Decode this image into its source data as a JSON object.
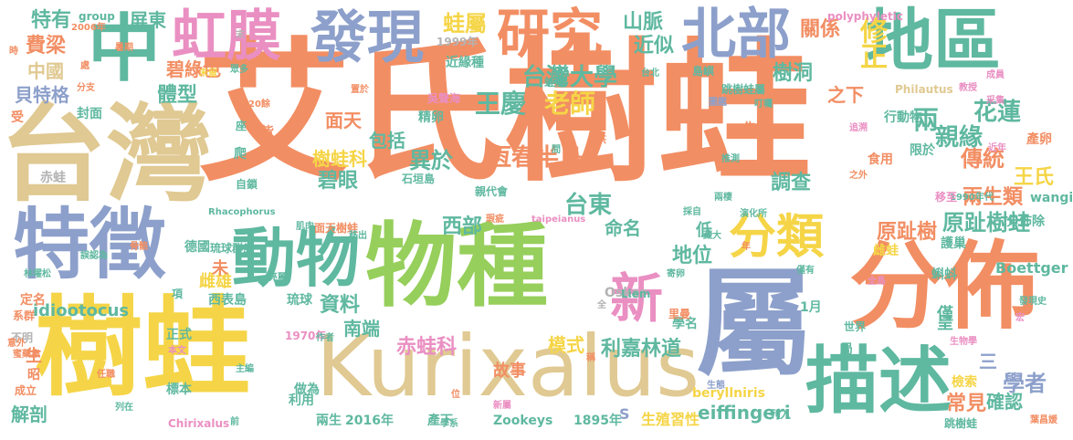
{
  "palette": {
    "orange": "#f28e63",
    "yellow": "#f5d547",
    "green": "#96cf5b",
    "blue": "#8da0cb",
    "beige": "#e0c992",
    "teal": "#5fb8a0",
    "pink": "#ea8fc2",
    "grey": "#b3b3b3"
  },
  "words": [
    {
      "text": "艾氏樹蛙",
      "color": "orange"
    },
    {
      "text": "台灣",
      "color": "beige"
    },
    {
      "text": "樹蛙",
      "color": "yellow"
    },
    {
      "text": "物種",
      "color": "green"
    },
    {
      "text": "屬",
      "color": "blue"
    },
    {
      "text": "分佈",
      "color": "orange"
    },
    {
      "text": "Kurixalus",
      "color": "beige"
    },
    {
      "text": "特徵",
      "color": "blue"
    },
    {
      "text": "動物",
      "color": "teal"
    },
    {
      "text": "描述",
      "color": "teal"
    },
    {
      "text": "地區",
      "color": "teal"
    },
    {
      "text": "中",
      "color": "teal"
    },
    {
      "text": "虹膜",
      "color": "pink"
    },
    {
      "text": "發現",
      "color": "blue"
    },
    {
      "text": "研究",
      "color": "orange"
    },
    {
      "text": "北部",
      "color": "blue"
    },
    {
      "text": "分類",
      "color": "yellow"
    },
    {
      "text": "新",
      "color": "pink"
    },
    {
      "text": "修正",
      "color": "yellow"
    },
    {
      "text": "蛙屬",
      "color": "yellow"
    },
    {
      "text": "特有",
      "color": "teal"
    },
    {
      "text": "費梁",
      "color": "orange"
    },
    {
      "text": "中國",
      "color": "beige"
    },
    {
      "text": "貝特格",
      "color": "blue"
    },
    {
      "text": "體型",
      "color": "teal"
    },
    {
      "text": "碧綠色",
      "color": "orange"
    },
    {
      "text": "屏東",
      "color": "teal"
    },
    {
      "text": "台灣大學",
      "color": "teal"
    },
    {
      "text": "王慶",
      "color": "teal"
    },
    {
      "text": "老師",
      "color": "yellow"
    },
    {
      "text": "山脈",
      "color": "teal"
    },
    {
      "text": "近似",
      "color": "teal"
    },
    {
      "text": "關係",
      "color": "orange"
    },
    {
      "text": "樹洞",
      "color": "teal"
    },
    {
      "text": "之下",
      "color": "orange"
    },
    {
      "text": "兩",
      "color": "teal"
    },
    {
      "text": "花蓮",
      "color": "teal"
    },
    {
      "text": "親緣",
      "color": "teal"
    },
    {
      "text": "傳統",
      "color": "orange"
    },
    {
      "text": "王氏",
      "color": "yellow"
    },
    {
      "text": "兩生類",
      "color": "orange"
    },
    {
      "text": "原趾樹蛙",
      "color": "teal"
    },
    {
      "text": "恆春半島",
      "color": "orange"
    },
    {
      "text": "異於",
      "color": "teal"
    },
    {
      "text": "包括",
      "color": "teal"
    },
    {
      "text": "面天",
      "color": "orange"
    },
    {
      "text": "樹蛙科",
      "color": "yellow"
    },
    {
      "text": "碧眼",
      "color": "teal"
    },
    {
      "text": "台東",
      "color": "teal"
    },
    {
      "text": "西部",
      "color": "teal"
    },
    {
      "text": "命名",
      "color": "teal"
    },
    {
      "text": "地位",
      "color": "teal"
    },
    {
      "text": "原趾樹",
      "color": "orange"
    },
    {
      "text": "調查",
      "color": "teal"
    },
    {
      "text": "資料",
      "color": "teal"
    },
    {
      "text": "南端",
      "color": "teal"
    },
    {
      "text": "赤蛙科",
      "color": "pink"
    },
    {
      "text": "模式",
      "color": "yellow"
    },
    {
      "text": "利嘉林道",
      "color": "teal"
    },
    {
      "text": "故事",
      "color": "orange"
    },
    {
      "text": "學者",
      "color": "blue"
    },
    {
      "text": "三",
      "color": "blue"
    },
    {
      "text": "常見",
      "color": "orange"
    },
    {
      "text": "確認",
      "color": "teal"
    },
    {
      "text": "解剖",
      "color": "teal"
    },
    {
      "text": "eiffingeri",
      "color": "teal"
    },
    {
      "text": "beryllniris",
      "color": "yellow"
    },
    {
      "text": "idiootocus",
      "color": "teal"
    },
    {
      "text": "Boettger",
      "color": "teal"
    },
    {
      "text": "Oskar",
      "color": "grey"
    },
    {
      "text": "Zookeys",
      "color": "teal"
    },
    {
      "text": "1895年",
      "color": "teal"
    },
    {
      "text": "2016年",
      "color": "teal"
    },
    {
      "text": "生殖習性",
      "color": "yellow"
    },
    {
      "text": "Chirixalus",
      "color": "pink"
    },
    {
      "text": "Rhacophorus",
      "color": "teal"
    },
    {
      "text": "wangi",
      "color": "teal"
    },
    {
      "text": "taipeianus",
      "color": "pink"
    },
    {
      "text": "polyphyletic",
      "color": "pink"
    },
    {
      "text": "Philautus",
      "color": "beige"
    },
    {
      "text": "group",
      "color": "teal"
    },
    {
      "text": "1999年",
      "color": "grey"
    },
    {
      "text": "2006年",
      "color": "orange"
    },
    {
      "text": "1970年",
      "color": "pink"
    },
    {
      "text": "1990年代",
      "color": "teal"
    },
    {
      "text": "近緣種",
      "color": "teal"
    },
    {
      "text": "赤蛙",
      "color": "grey"
    },
    {
      "text": "琉球群島",
      "color": "teal"
    },
    {
      "text": "琉球",
      "color": "teal"
    },
    {
      "text": "西表島",
      "color": "teal"
    },
    {
      "text": "德國",
      "color": "teal"
    },
    {
      "text": "雌雄",
      "color": "yellow"
    },
    {
      "text": "正式",
      "color": "teal"
    },
    {
      "text": "標本",
      "color": "teal"
    },
    {
      "text": "做為",
      "color": "teal"
    },
    {
      "text": "利用",
      "color": "teal"
    },
    {
      "text": "產下",
      "color": "teal"
    },
    {
      "text": "兩生",
      "color": "teal"
    },
    {
      "text": "僅",
      "color": "teal"
    },
    {
      "text": "呈",
      "color": "teal"
    },
    {
      "text": "分佈除",
      "color": "teal"
    },
    {
      "text": "產卵",
      "color": "orange"
    },
    {
      "text": "蝌蚪",
      "color": "teal"
    },
    {
      "text": "護巢",
      "color": "teal"
    },
    {
      "text": "雌蛙",
      "color": "yellow"
    },
    {
      "text": "食用",
      "color": "orange"
    },
    {
      "text": "行動物",
      "color": "teal"
    },
    {
      "text": "限於",
      "color": "teal"
    },
    {
      "text": "移至",
      "color": "pink"
    },
    {
      "text": "跳樹蛙屬",
      "color": "teal"
    },
    {
      "text": "成員",
      "color": "pink"
    },
    {
      "text": "教授",
      "color": "pink"
    },
    {
      "text": "吳聲海",
      "color": "pink"
    },
    {
      "text": "精卵",
      "color": "teal"
    },
    {
      "text": "學名",
      "color": "teal"
    },
    {
      "text": "發現史",
      "color": "teal"
    },
    {
      "text": "全島",
      "color": "pink"
    },
    {
      "text": "S",
      "color": "blue"
    },
    {
      "text": "1月",
      "color": "teal"
    },
    {
      "text": "生",
      "color": "orange"
    },
    {
      "text": "昭",
      "color": "orange"
    },
    {
      "text": "定名",
      "color": "orange"
    },
    {
      "text": "系群",
      "color": "orange"
    },
    {
      "text": "不明",
      "color": "grey"
    },
    {
      "text": "成立",
      "color": "orange"
    },
    {
      "text": "封面",
      "color": "teal"
    },
    {
      "text": "受",
      "color": "orange"
    },
    {
      "text": "分支",
      "color": "orange"
    },
    {
      "text": "時",
      "color": "orange"
    },
    {
      "text": "末",
      "color": "grey"
    },
    {
      "text": "暑期",
      "color": "orange"
    },
    {
      "text": "處",
      "color": "orange"
    },
    {
      "text": "眾多",
      "color": "teal"
    },
    {
      "text": "20餘",
      "color": "orange"
    },
    {
      "text": "座",
      "color": "teal"
    },
    {
      "text": "皆",
      "color": "orange"
    },
    {
      "text": "爬",
      "color": "teal"
    },
    {
      "text": "供",
      "color": "orange"
    },
    {
      "text": "告",
      "color": "orange"
    },
    {
      "text": "低",
      "color": "teal"
    },
    {
      "text": "未",
      "color": "orange"
    },
    {
      "text": "項",
      "color": "teal"
    },
    {
      "text": "全",
      "color": "grey"
    },
    {
      "text": "年",
      "color": "orange"
    },
    {
      "text": "前",
      "color": "teal"
    },
    {
      "text": "局",
      "color": "teal"
    },
    {
      "text": "列入",
      "color": "teal"
    },
    {
      "text": "檢索",
      "color": "yellow"
    },
    {
      "text": "主編",
      "color": "teal"
    },
    {
      "text": "本文",
      "color": "pink"
    },
    {
      "text": "任職",
      "color": "orange"
    },
    {
      "text": "作者",
      "color": "teal"
    },
    {
      "text": "意外",
      "color": "orange"
    },
    {
      "text": "林曜松",
      "color": "teal"
    },
    {
      "text": "新屬",
      "color": "pink"
    },
    {
      "text": "學系",
      "color": "teal"
    },
    {
      "text": "跳樹蛙",
      "color": "teal"
    },
    {
      "text": "葉昌媛",
      "color": "orange"
    },
    {
      "text": "生物學",
      "color": "pink"
    },
    {
      "text": "生態",
      "color": "blue"
    },
    {
      "text": "世界",
      "color": "teal"
    },
    {
      "text": "台北",
      "color": "teal"
    },
    {
      "text": "島嶼",
      "color": "teal"
    },
    {
      "text": "蛙屬",
      "color": "teal"
    },
    {
      "text": "Liem",
      "color": "teal"
    },
    {
      "text": "里曼",
      "color": "orange"
    },
    {
      "text": "面天樹蛙",
      "color": "orange"
    },
    {
      "text": "石垣島",
      "color": "teal"
    },
    {
      "text": "親代會",
      "color": "teal"
    },
    {
      "text": "自鎖",
      "color": "teal"
    },
    {
      "text": "骨骼",
      "color": "orange"
    },
    {
      "text": "誤認為",
      "color": "teal"
    },
    {
      "text": "置於",
      "color": "orange"
    },
    {
      "text": "未留",
      "color": "yellow"
    },
    {
      "text": "圖鑑",
      "color": "blue"
    },
    {
      "text": "叮囑",
      "color": "teal"
    },
    {
      "text": "采集",
      "color": "pink"
    },
    {
      "text": "追溯",
      "color": "pink"
    },
    {
      "text": "推測",
      "color": "teal"
    },
    {
      "text": "之外",
      "color": "orange"
    },
    {
      "text": "近年",
      "color": "pink"
    },
    {
      "text": "兩棲",
      "color": "teal"
    },
    {
      "text": "採自",
      "color": "teal"
    },
    {
      "text": "移出",
      "color": "teal"
    },
    {
      "text": "瑕疵",
      "color": "orange"
    },
    {
      "text": "肌肉",
      "color": "teal"
    },
    {
      "text": "寄卵",
      "color": "teal"
    },
    {
      "text": "僅有",
      "color": "teal"
    },
    {
      "text": "演化所",
      "color": "teal"
    },
    {
      "text": "藏大",
      "color": "teal"
    },
    {
      "text": "亮麗",
      "color": "teal"
    },
    {
      "text": "列在",
      "color": "teal"
    },
    {
      "text": "稱",
      "color": "teal"
    },
    {
      "text": "位",
      "color": "orange"
    },
    {
      "text": "間",
      "color": "orange"
    },
    {
      "text": "宏",
      "color": "teal"
    },
    {
      "text": "蜜藥集",
      "color": "pink"
    },
    {
      "text": "書",
      "color": "orange"
    }
  ]
}
